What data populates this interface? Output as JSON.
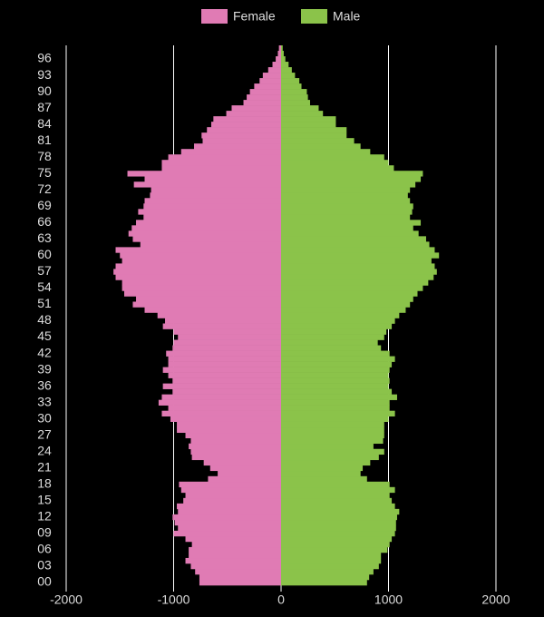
{
  "chart_data": {
    "type": "bar",
    "orientation": "horizontal",
    "background": "#000000",
    "text_color": "#dddddd",
    "grid": true,
    "categories": [
      "00",
      null,
      null,
      "03",
      null,
      null,
      "06",
      null,
      null,
      "09",
      null,
      null,
      "12",
      null,
      null,
      "15",
      null,
      null,
      "18",
      null,
      null,
      "21",
      null,
      null,
      "24",
      null,
      null,
      "27",
      null,
      null,
      "30",
      null,
      null,
      "33",
      null,
      null,
      "36",
      null,
      null,
      "39",
      null,
      null,
      "42",
      null,
      null,
      "45",
      null,
      null,
      "48",
      null,
      null,
      "51",
      null,
      null,
      "54",
      null,
      null,
      "57",
      null,
      null,
      "60",
      null,
      null,
      "63",
      null,
      null,
      "66",
      null,
      null,
      "69",
      null,
      null,
      "72",
      null,
      null,
      "75",
      null,
      null,
      "78",
      null,
      null,
      "81",
      null,
      null,
      "84",
      null,
      null,
      "87",
      null,
      null,
      "90",
      null,
      null,
      "93",
      null,
      null,
      "96",
      null,
      null
    ],
    "series": [
      {
        "name": "Female",
        "color": "#e07bb4",
        "values": [
          -760,
          -760,
          -800,
          -840,
          -890,
          -860,
          -860,
          -830,
          -890,
          -1000,
          -960,
          -990,
          -1010,
          -960,
          -970,
          -910,
          -890,
          -930,
          -950,
          -680,
          -590,
          -660,
          -720,
          -830,
          -840,
          -860,
          -840,
          -890,
          -970,
          -970,
          -1030,
          -1110,
          -1050,
          -1140,
          -1110,
          -1010,
          -1100,
          -1010,
          -1050,
          -1100,
          -1050,
          -1050,
          -1070,
          -1010,
          -1000,
          -960,
          -1000,
          -1100,
          -1080,
          -1150,
          -1270,
          -1380,
          -1350,
          -1460,
          -1480,
          -1480,
          -1540,
          -1560,
          -1540,
          -1480,
          -1500,
          -1540,
          -1310,
          -1380,
          -1420,
          -1390,
          -1350,
          -1280,
          -1330,
          -1280,
          -1270,
          -1220,
          -1210,
          -1370,
          -1270,
          -1430,
          -1110,
          -1110,
          -1050,
          -930,
          -810,
          -730,
          -740,
          -690,
          -650,
          -630,
          -510,
          -460,
          -350,
          -320,
          -290,
          -250,
          -200,
          -170,
          -120,
          -80,
          -50,
          -30,
          -20
        ]
      },
      {
        "name": "Male",
        "color": "#8bc34a",
        "values": [
          800,
          820,
          860,
          910,
          930,
          930,
          990,
          1010,
          1030,
          1060,
          1070,
          1070,
          1080,
          1100,
          1060,
          1030,
          1010,
          1060,
          1010,
          800,
          740,
          760,
          830,
          910,
          960,
          860,
          950,
          960,
          960,
          960,
          1000,
          1060,
          1010,
          1010,
          1080,
          1030,
          1000,
          1010,
          1000,
          1010,
          1030,
          1060,
          1010,
          930,
          900,
          960,
          980,
          1030,
          1060,
          1100,
          1160,
          1200,
          1230,
          1270,
          1320,
          1370,
          1420,
          1450,
          1430,
          1400,
          1470,
          1430,
          1380,
          1350,
          1280,
          1230,
          1300,
          1200,
          1220,
          1230,
          1200,
          1180,
          1200,
          1250,
          1300,
          1320,
          1050,
          1000,
          960,
          830,
          740,
          680,
          610,
          610,
          510,
          510,
          390,
          350,
          270,
          250,
          240,
          190,
          170,
          130,
          100,
          70,
          40,
          25,
          15
        ]
      }
    ],
    "xlim": [
      -2000,
      2000
    ],
    "xticks": [
      -2000,
      -1000,
      0,
      1000,
      2000
    ]
  }
}
